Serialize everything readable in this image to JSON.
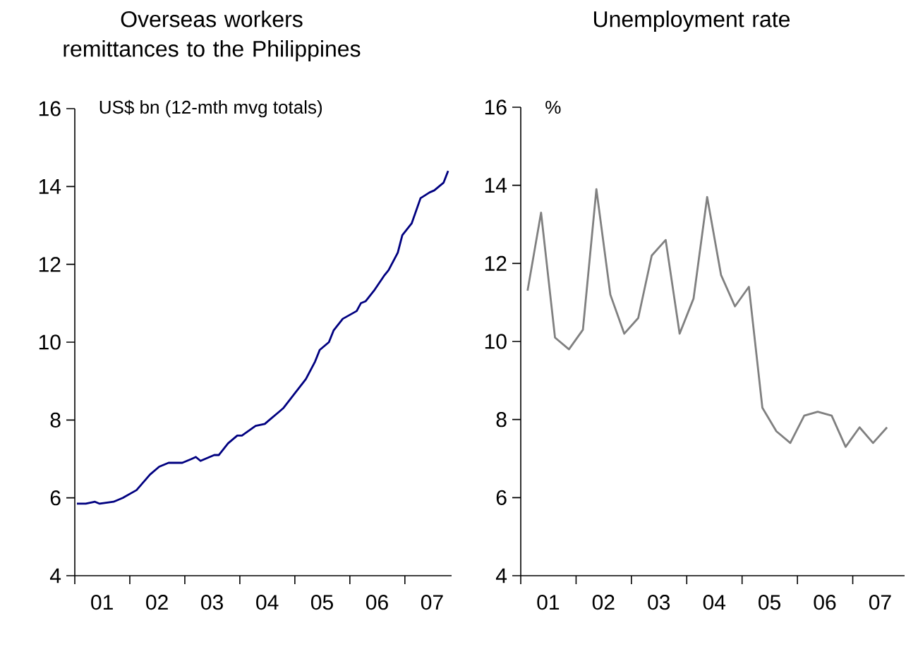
{
  "chart_data": [
    {
      "type": "line",
      "title": "Overseas workers remittances to the Philippines",
      "ylabel": "US$ bn (12-mth mvg totals)",
      "color": "#000080",
      "x": [
        "2001-01-15",
        "2001-03-15",
        "2001-05-15",
        "2001-06-15",
        "2001-09-15",
        "2001-11-15",
        "2002-02-15",
        "2002-05-15",
        "2002-07-15",
        "2002-09-15",
        "2002-11-15",
        "2002-12-15",
        "2003-02-15",
        "2003-03-15",
        "2003-04-15",
        "2003-07-15",
        "2003-08-15",
        "2003-10-15",
        "2003-12-15",
        "2004-01-15",
        "2004-04-15",
        "2004-06-15",
        "2004-07-15",
        "2004-09-15",
        "2004-10-15",
        "2004-12-15",
        "2005-03-15",
        "2005-05-15",
        "2005-06-15",
        "2005-08-15",
        "2005-09-15",
        "2005-11-15",
        "2006-02-15",
        "2006-03-15",
        "2006-04-15",
        "2006-06-15",
        "2006-08-15",
        "2006-09-15",
        "2006-11-15",
        "2006-12-15",
        "2007-02-15",
        "2007-04-15",
        "2007-06-15",
        "2007-07-15",
        "2007-09-15",
        "2007-10-15"
      ],
      "values": [
        5.85,
        5.85,
        5.9,
        5.85,
        5.9,
        6.0,
        6.2,
        6.6,
        6.8,
        6.9,
        6.9,
        6.9,
        7.0,
        7.05,
        6.95,
        7.1,
        7.1,
        7.4,
        7.6,
        7.6,
        7.85,
        7.9,
        8.0,
        8.2,
        8.3,
        8.6,
        9.05,
        9.5,
        9.8,
        10.0,
        10.3,
        10.6,
        10.8,
        11.0,
        11.05,
        11.35,
        11.7,
        11.85,
        12.3,
        12.75,
        13.05,
        13.7,
        13.85,
        13.9,
        14.1,
        14.4
      ],
      "xlim": [
        "2001-01-01",
        "2007-11-07"
      ],
      "xticks": [
        {
          "value": "2001-01-01",
          "label": null
        },
        {
          "value": "2001-07-01",
          "label": "01"
        },
        {
          "value": "2002-01-01",
          "label": null
        },
        {
          "value": "2002-07-01",
          "label": "02"
        },
        {
          "value": "2003-01-01",
          "label": null
        },
        {
          "value": "2003-07-01",
          "label": "03"
        },
        {
          "value": "2004-01-01",
          "label": null
        },
        {
          "value": "2004-07-01",
          "label": "04"
        },
        {
          "value": "2005-01-01",
          "label": null
        },
        {
          "value": "2005-07-01",
          "label": "05"
        },
        {
          "value": "2006-01-01",
          "label": null
        },
        {
          "value": "2006-07-01",
          "label": "06"
        },
        {
          "value": "2007-01-01",
          "label": null
        },
        {
          "value": "2007-07-01",
          "label": "07"
        }
      ],
      "ylim": [
        4,
        16
      ],
      "yticks": [
        4,
        6,
        8,
        10,
        12,
        14,
        16
      ]
    },
    {
      "type": "line",
      "title": "Unemployment rate",
      "ylabel": "%",
      "color": "#808080",
      "x": [
        "2001-02-15",
        "2001-05-15",
        "2001-08-15",
        "2001-11-15",
        "2002-02-15",
        "2002-05-15",
        "2002-08-15",
        "2002-11-15",
        "2003-02-15",
        "2003-05-15",
        "2003-08-15",
        "2003-11-15",
        "2004-02-15",
        "2004-05-15",
        "2004-08-15",
        "2004-11-15",
        "2005-02-15",
        "2005-05-15",
        "2005-08-15",
        "2005-11-15",
        "2006-02-15",
        "2006-05-15",
        "2006-08-15",
        "2006-11-15",
        "2007-02-15",
        "2007-05-15",
        "2007-08-15"
      ],
      "values": [
        11.3,
        13.3,
        10.1,
        9.8,
        10.3,
        13.9,
        11.2,
        10.2,
        10.6,
        12.2,
        12.6,
        10.2,
        11.1,
        13.7,
        11.7,
        10.9,
        11.4,
        8.3,
        7.7,
        7.4,
        8.1,
        8.2,
        8.1,
        7.3,
        7.8,
        7.4,
        7.8
      ],
      "xlim": [
        "2001-01-01",
        "2007-12-09"
      ],
      "xticks": [
        {
          "value": "2001-01-01",
          "label": null
        },
        {
          "value": "2001-07-01",
          "label": "01"
        },
        {
          "value": "2002-01-01",
          "label": null
        },
        {
          "value": "2002-07-01",
          "label": "02"
        },
        {
          "value": "2003-01-01",
          "label": null
        },
        {
          "value": "2003-07-01",
          "label": "03"
        },
        {
          "value": "2004-01-01",
          "label": null
        },
        {
          "value": "2004-07-01",
          "label": "04"
        },
        {
          "value": "2005-01-01",
          "label": null
        },
        {
          "value": "2005-07-01",
          "label": "05"
        },
        {
          "value": "2006-01-01",
          "label": null
        },
        {
          "value": "2006-07-01",
          "label": "06"
        },
        {
          "value": "2007-01-01",
          "label": null
        },
        {
          "value": "2007-07-01",
          "label": "07"
        }
      ],
      "ylim": [
        4,
        16
      ],
      "yticks": [
        4,
        6,
        8,
        10,
        12,
        14,
        16
      ]
    }
  ]
}
